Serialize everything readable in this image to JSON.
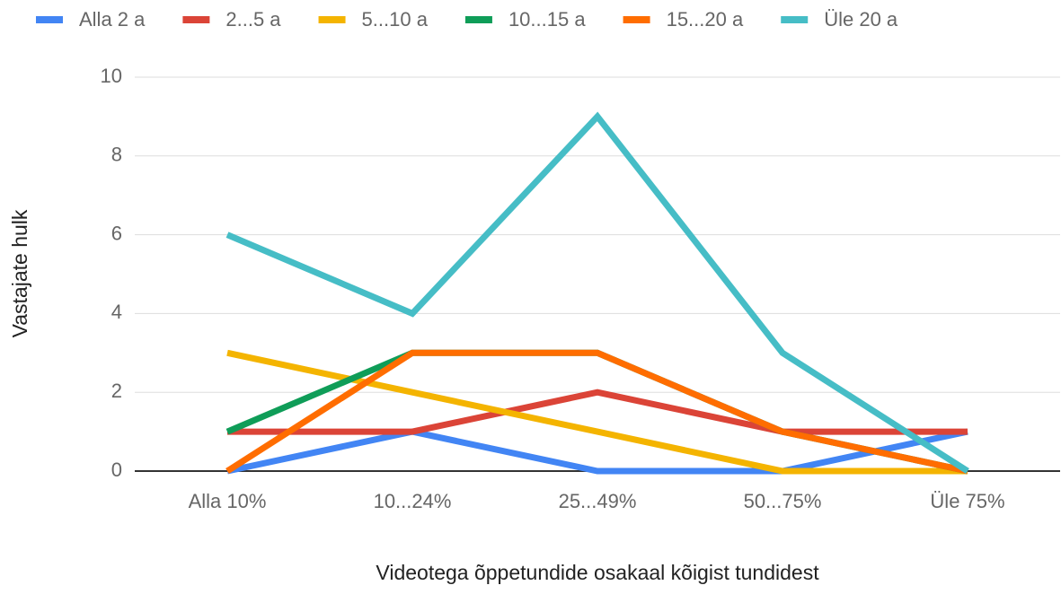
{
  "chart_data": {
    "type": "line",
    "xlabel": "Videotega õppetundide osakaal kõigist tundidest",
    "ylabel": "Vastajate hulk",
    "categories": [
      "Alla 10%",
      "10...24%",
      "25...49%",
      "50...75%",
      "Üle 75%"
    ],
    "series": [
      {
        "name": "Alla 2 a",
        "color": "#4285f4",
        "values": [
          0,
          1,
          0,
          0,
          1
        ]
      },
      {
        "name": "2...5 a",
        "color": "#db4437",
        "values": [
          1,
          1,
          2,
          1,
          1
        ]
      },
      {
        "name": "5...10 a",
        "color": "#f4b400",
        "values": [
          3,
          2,
          1,
          0,
          0
        ]
      },
      {
        "name": "10...15 a",
        "color": "#0f9d58",
        "values": [
          1,
          3,
          3,
          1,
          0
        ]
      },
      {
        "name": "15...20 a",
        "color": "#ff6d00",
        "values": [
          0,
          3,
          3,
          1,
          0
        ]
      },
      {
        "name": "Üle 20 a",
        "color": "#46bdc6",
        "values": [
          6,
          4,
          9,
          3,
          0
        ]
      }
    ],
    "ylim": [
      0,
      10
    ],
    "yticks": [
      0,
      2,
      4,
      6,
      8,
      10
    ],
    "grid": true,
    "legend": "top"
  }
}
